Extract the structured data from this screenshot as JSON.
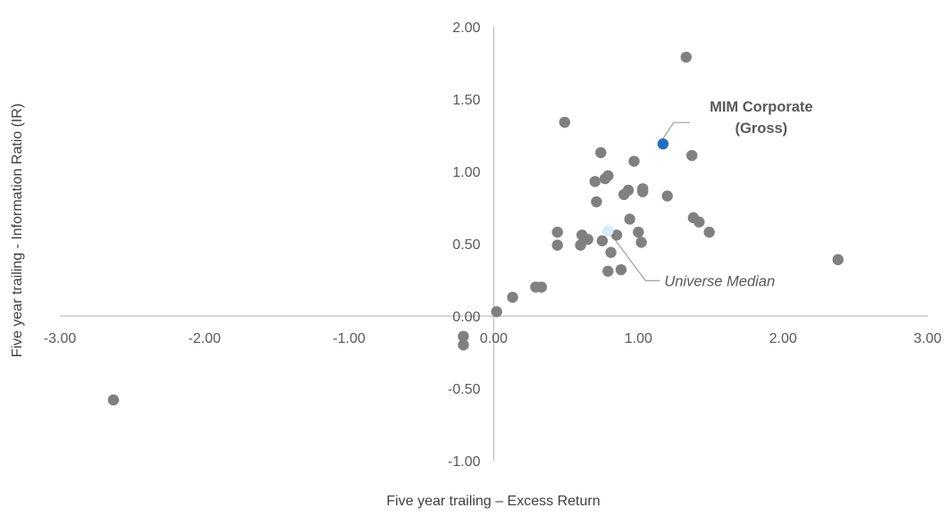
{
  "chart_data": {
    "type": "scatter",
    "title": "",
    "xlabel": "Five year trailing – Excess Return",
    "ylabel": "Five year trailing - Information Ratio (IR)",
    "xlim": [
      -3,
      3
    ],
    "ylim": [
      -1,
      2
    ],
    "x_ticks": [
      "-3.00",
      "-2.00",
      "-1.00",
      "0.00",
      "1.00",
      "2.00",
      "3.00"
    ],
    "y_ticks": [
      "-1.00",
      "-0.50",
      "0.00",
      "0.50",
      "1.00",
      "1.50",
      "2.00"
    ],
    "grid": false,
    "colors": {
      "universe": "#808080",
      "mim": "#1f6fc2",
      "median": "#d6ebf8",
      "axis": "#bfbfbf",
      "leader": "#a6a6a6"
    },
    "series": [
      {
        "role": "universe",
        "points": [
          [
            -2.63,
            -0.58
          ],
          [
            -0.21,
            -0.14
          ],
          [
            -0.21,
            -0.2
          ],
          [
            0.02,
            0.03
          ],
          [
            0.13,
            0.13
          ],
          [
            0.29,
            0.2
          ],
          [
            0.33,
            0.2
          ],
          [
            0.44,
            0.58
          ],
          [
            0.44,
            0.49
          ],
          [
            0.49,
            1.34
          ],
          [
            0.6,
            0.49
          ],
          [
            0.61,
            0.56
          ],
          [
            0.65,
            0.53
          ],
          [
            0.7,
            0.93
          ],
          [
            0.71,
            0.79
          ],
          [
            0.74,
            1.13
          ],
          [
            0.75,
            0.52
          ],
          [
            0.77,
            0.95
          ],
          [
            0.79,
            0.97
          ],
          [
            0.79,
            0.31
          ],
          [
            0.81,
            0.44
          ],
          [
            0.85,
            0.56
          ],
          [
            0.88,
            0.32
          ],
          [
            0.9,
            0.84
          ],
          [
            0.93,
            0.87
          ],
          [
            0.94,
            0.67
          ],
          [
            0.97,
            1.07
          ],
          [
            1.0,
            0.58
          ],
          [
            1.02,
            0.51
          ],
          [
            1.03,
            0.86
          ],
          [
            1.03,
            0.88
          ],
          [
            1.2,
            0.83
          ],
          [
            1.33,
            1.79
          ],
          [
            1.37,
            1.11
          ],
          [
            1.38,
            0.68
          ],
          [
            1.42,
            0.65
          ],
          [
            1.49,
            0.58
          ],
          [
            2.38,
            0.39
          ]
        ]
      },
      {
        "role": "median",
        "label": "Universe Median",
        "points": [
          [
            0.79,
            0.59
          ]
        ]
      },
      {
        "role": "mim",
        "label": "MIM Corporate (Gross)",
        "label_lines": [
          "MIM Corporate",
          "(Gross)"
        ],
        "points": [
          [
            1.17,
            1.19
          ]
        ]
      }
    ]
  }
}
